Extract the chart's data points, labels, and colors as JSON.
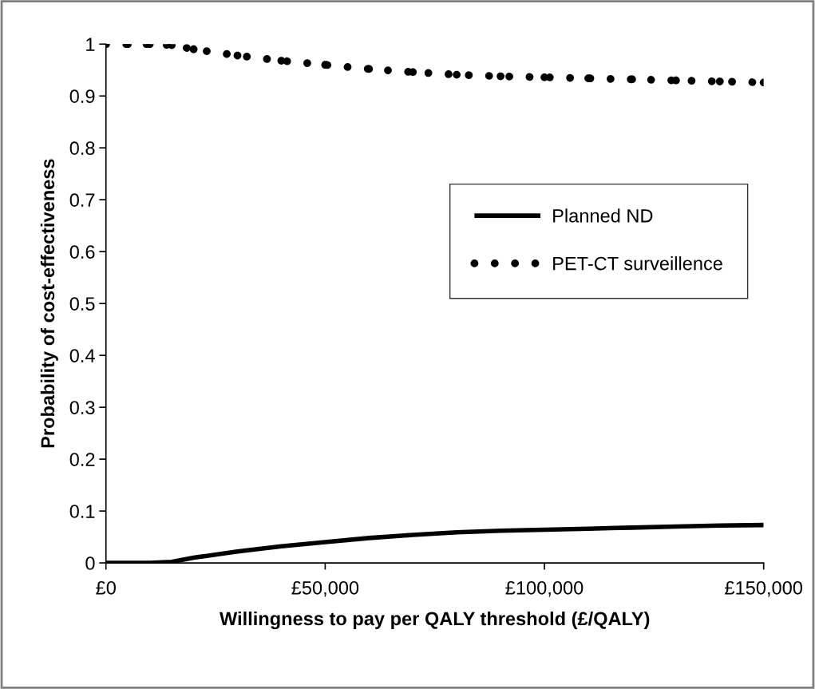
{
  "chart_data": {
    "type": "line",
    "xlabel": "Willingness to pay per QALY threshold (£/QALY)",
    "ylabel": "Probability of cost-effectiveness",
    "x": [
      0,
      5000,
      10000,
      15000,
      20000,
      30000,
      40000,
      50000,
      60000,
      70000,
      80000,
      90000,
      100000,
      110000,
      120000,
      130000,
      140000,
      150000
    ],
    "series": [
      {
        "name": "Planned ND",
        "color": "#000000",
        "line_style": "solid",
        "values": [
          0,
          0,
          0,
          0.002,
          0.01,
          0.022,
          0.032,
          0.04,
          0.048,
          0.054,
          0.059,
          0.062,
          0.064,
          0.066,
          0.068,
          0.07,
          0.072,
          0.073
        ]
      },
      {
        "name": "PET-CT surveillence",
        "color": "#000000",
        "line_style": "dotted",
        "marker": "circle",
        "values": [
          1,
          1,
          1,
          0.998,
          0.99,
          0.978,
          0.968,
          0.96,
          0.952,
          0.946,
          0.941,
          0.938,
          0.936,
          0.934,
          0.932,
          0.93,
          0.928,
          0.926
        ]
      }
    ],
    "xlim": [
      0,
      150000
    ],
    "xticks": [
      {
        "value": 0,
        "label": "£0"
      },
      {
        "value": 50000,
        "label": "£50,000"
      },
      {
        "value": 100000,
        "label": "£100,000"
      },
      {
        "value": 150000,
        "label": "£150,000"
      }
    ],
    "ylim": [
      0,
      1
    ],
    "yticks": [
      0,
      {
        "value": 0.1,
        "label": "0.1"
      },
      {
        "value": 0.2,
        "label": "0.2"
      },
      {
        "value": 0.3,
        "label": "0.3"
      },
      {
        "value": 0.4,
        "label": "0.4"
      },
      {
        "value": 0.5,
        "label": "0.5"
      },
      {
        "value": 0.6,
        "label": "0.6"
      },
      {
        "value": 0.7,
        "label": "0.7"
      },
      {
        "value": 0.8,
        "label": "0.8"
      },
      {
        "value": 0.9,
        "label": "0.9"
      },
      1
    ],
    "grid": false,
    "legend": "right"
  }
}
